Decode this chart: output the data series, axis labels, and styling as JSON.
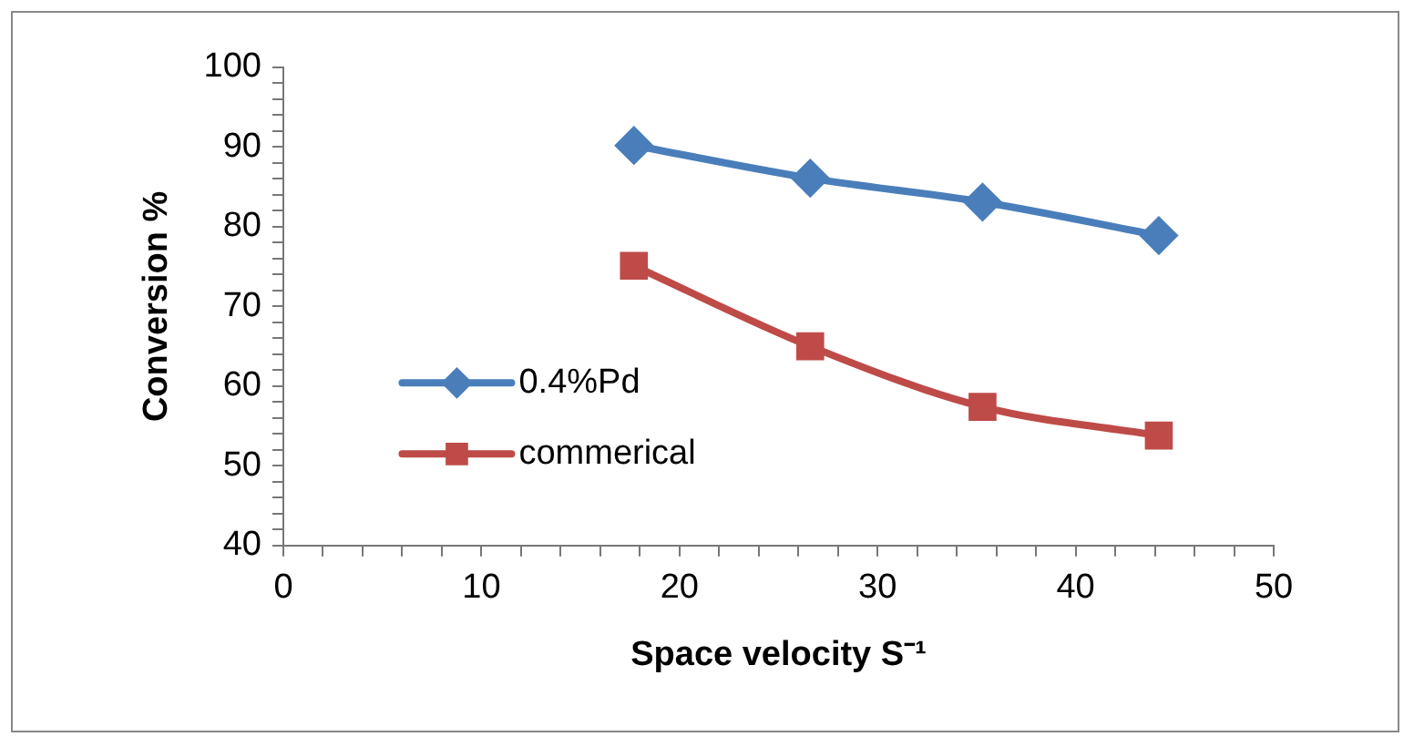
{
  "chart_data": {
    "type": "line",
    "xlabel": "Space velocity S⁻¹",
    "ylabel": "Conversion %",
    "x": [
      17.7,
      26.6,
      35.3,
      44.2
    ],
    "series": [
      {
        "name": "0.4%Pd",
        "color": "#4a7ebb",
        "marker": "diamond",
        "values": [
          90.2,
          86.1,
          83.1,
          78.9
        ]
      },
      {
        "name": "commerical",
        "color": "#be4b48",
        "marker": "square",
        "values": [
          75.1,
          65.0,
          57.4,
          53.8
        ]
      }
    ],
    "xlim": [
      0,
      50
    ],
    "ylim": [
      40,
      100
    ],
    "xticks": [
      0,
      {
        "value": 2,
        "label": null
      },
      {
        "value": 4,
        "label": null
      },
      {
        "value": 6,
        "label": null
      },
      {
        "value": 8,
        "label": null
      },
      10,
      {
        "value": 12,
        "label": null
      },
      {
        "value": 14,
        "label": null
      },
      {
        "value": 16,
        "label": null
      },
      {
        "value": 18,
        "label": null
      },
      20,
      {
        "value": 22,
        "label": null
      },
      {
        "value": 24,
        "label": null
      },
      {
        "value": 26,
        "label": null
      },
      {
        "value": 28,
        "label": null
      },
      30,
      {
        "value": 32,
        "label": null
      },
      {
        "value": 34,
        "label": null
      },
      {
        "value": 36,
        "label": null
      },
      {
        "value": 38,
        "label": null
      },
      40,
      {
        "value": 42,
        "label": null
      },
      {
        "value": 44,
        "label": null
      },
      {
        "value": 46,
        "label": null
      },
      {
        "value": 48,
        "label": null
      },
      50
    ],
    "yticks": [
      40,
      {
        "value": 42,
        "label": null
      },
      {
        "value": 44,
        "label": null
      },
      {
        "value": 46,
        "label": null
      },
      {
        "value": 48,
        "label": null
      },
      50,
      {
        "value": 52,
        "label": null
      },
      {
        "value": 54,
        "label": null
      },
      {
        "value": 56,
        "label": null
      },
      {
        "value": 58,
        "label": null
      },
      60,
      {
        "value": 62,
        "label": null
      },
      {
        "value": 64,
        "label": null
      },
      {
        "value": 66,
        "label": null
      },
      {
        "value": 68,
        "label": null
      },
      70,
      {
        "value": 72,
        "label": null
      },
      {
        "value": 74,
        "label": null
      },
      {
        "value": 76,
        "label": null
      },
      {
        "value": 78,
        "label": null
      },
      80,
      {
        "value": 82,
        "label": null
      },
      {
        "value": 84,
        "label": null
      },
      {
        "value": 86,
        "label": null
      },
      {
        "value": 88,
        "label": null
      },
      90,
      {
        "value": 92,
        "label": null
      },
      {
        "value": 94,
        "label": null
      },
      {
        "value": 96,
        "label": null
      },
      {
        "value": 98,
        "label": null
      },
      100
    ],
    "grid": false,
    "legend": "left",
    "line_style": "solid"
  }
}
